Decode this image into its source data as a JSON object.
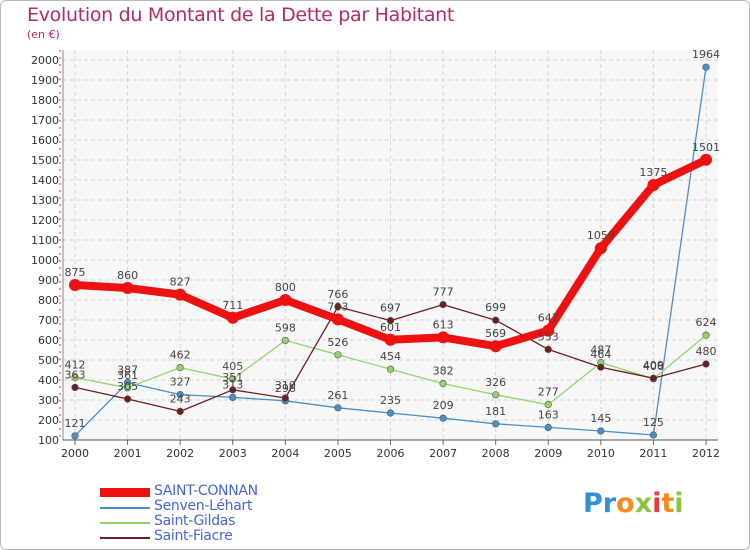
{
  "title": "Evolution du Montant de la Dette par Habitant",
  "subtitle": "(en €)",
  "logo": {
    "letters": [
      "P",
      "r",
      "o",
      "x",
      "i",
      "t",
      "i"
    ],
    "colors": [
      "#2f8fd8",
      "#2f8fd8",
      "#f28c1e",
      "#8bc43f",
      "#e23d3d",
      "#f28c1e",
      "#8bc43f"
    ]
  },
  "chart_data": {
    "type": "line",
    "title": "Evolution du Montant de la Dette par Habitant",
    "subtitle": "(en €)",
    "xlabel": "",
    "ylabel": "",
    "ylim": [
      100,
      2000
    ],
    "yticks": [
      100,
      200,
      300,
      400,
      500,
      600,
      700,
      800,
      900,
      1000,
      1100,
      1200,
      1300,
      1400,
      1500,
      1600,
      1700,
      1800,
      1900,
      2000
    ],
    "categories": [
      "2000",
      "2001",
      "2002",
      "2003",
      "2004",
      "2005",
      "2006",
      "2007",
      "2008",
      "2009",
      "2010",
      "2011",
      "2012"
    ],
    "grid": true,
    "legend": "bottom-left",
    "series": [
      {
        "name": "SAINT-CONNAN",
        "color": "#ee1111",
        "values": [
          875,
          860,
          827,
          711,
          800,
          703,
          601,
          613,
          569,
          647,
          1059,
          1375,
          1501
        ]
      },
      {
        "name": "Senven-Léhart",
        "color": "#4a90c8",
        "values": [
          121,
          387,
          327,
          313,
          296,
          261,
          235,
          209,
          181,
          163,
          145,
          125,
          1964
        ]
      },
      {
        "name": "Saint-Gildas",
        "color": "#93d46a",
        "values": [
          412,
          361,
          462,
          405,
          598,
          526,
          454,
          382,
          326,
          277,
          487,
          406,
          624
        ]
      },
      {
        "name": "Saint-Fiacre",
        "color": "#6b1f1f",
        "values": [
          363,
          305,
          243,
          351,
          310,
          766,
          697,
          777,
          699,
          553,
          464,
          409,
          480
        ]
      }
    ]
  }
}
